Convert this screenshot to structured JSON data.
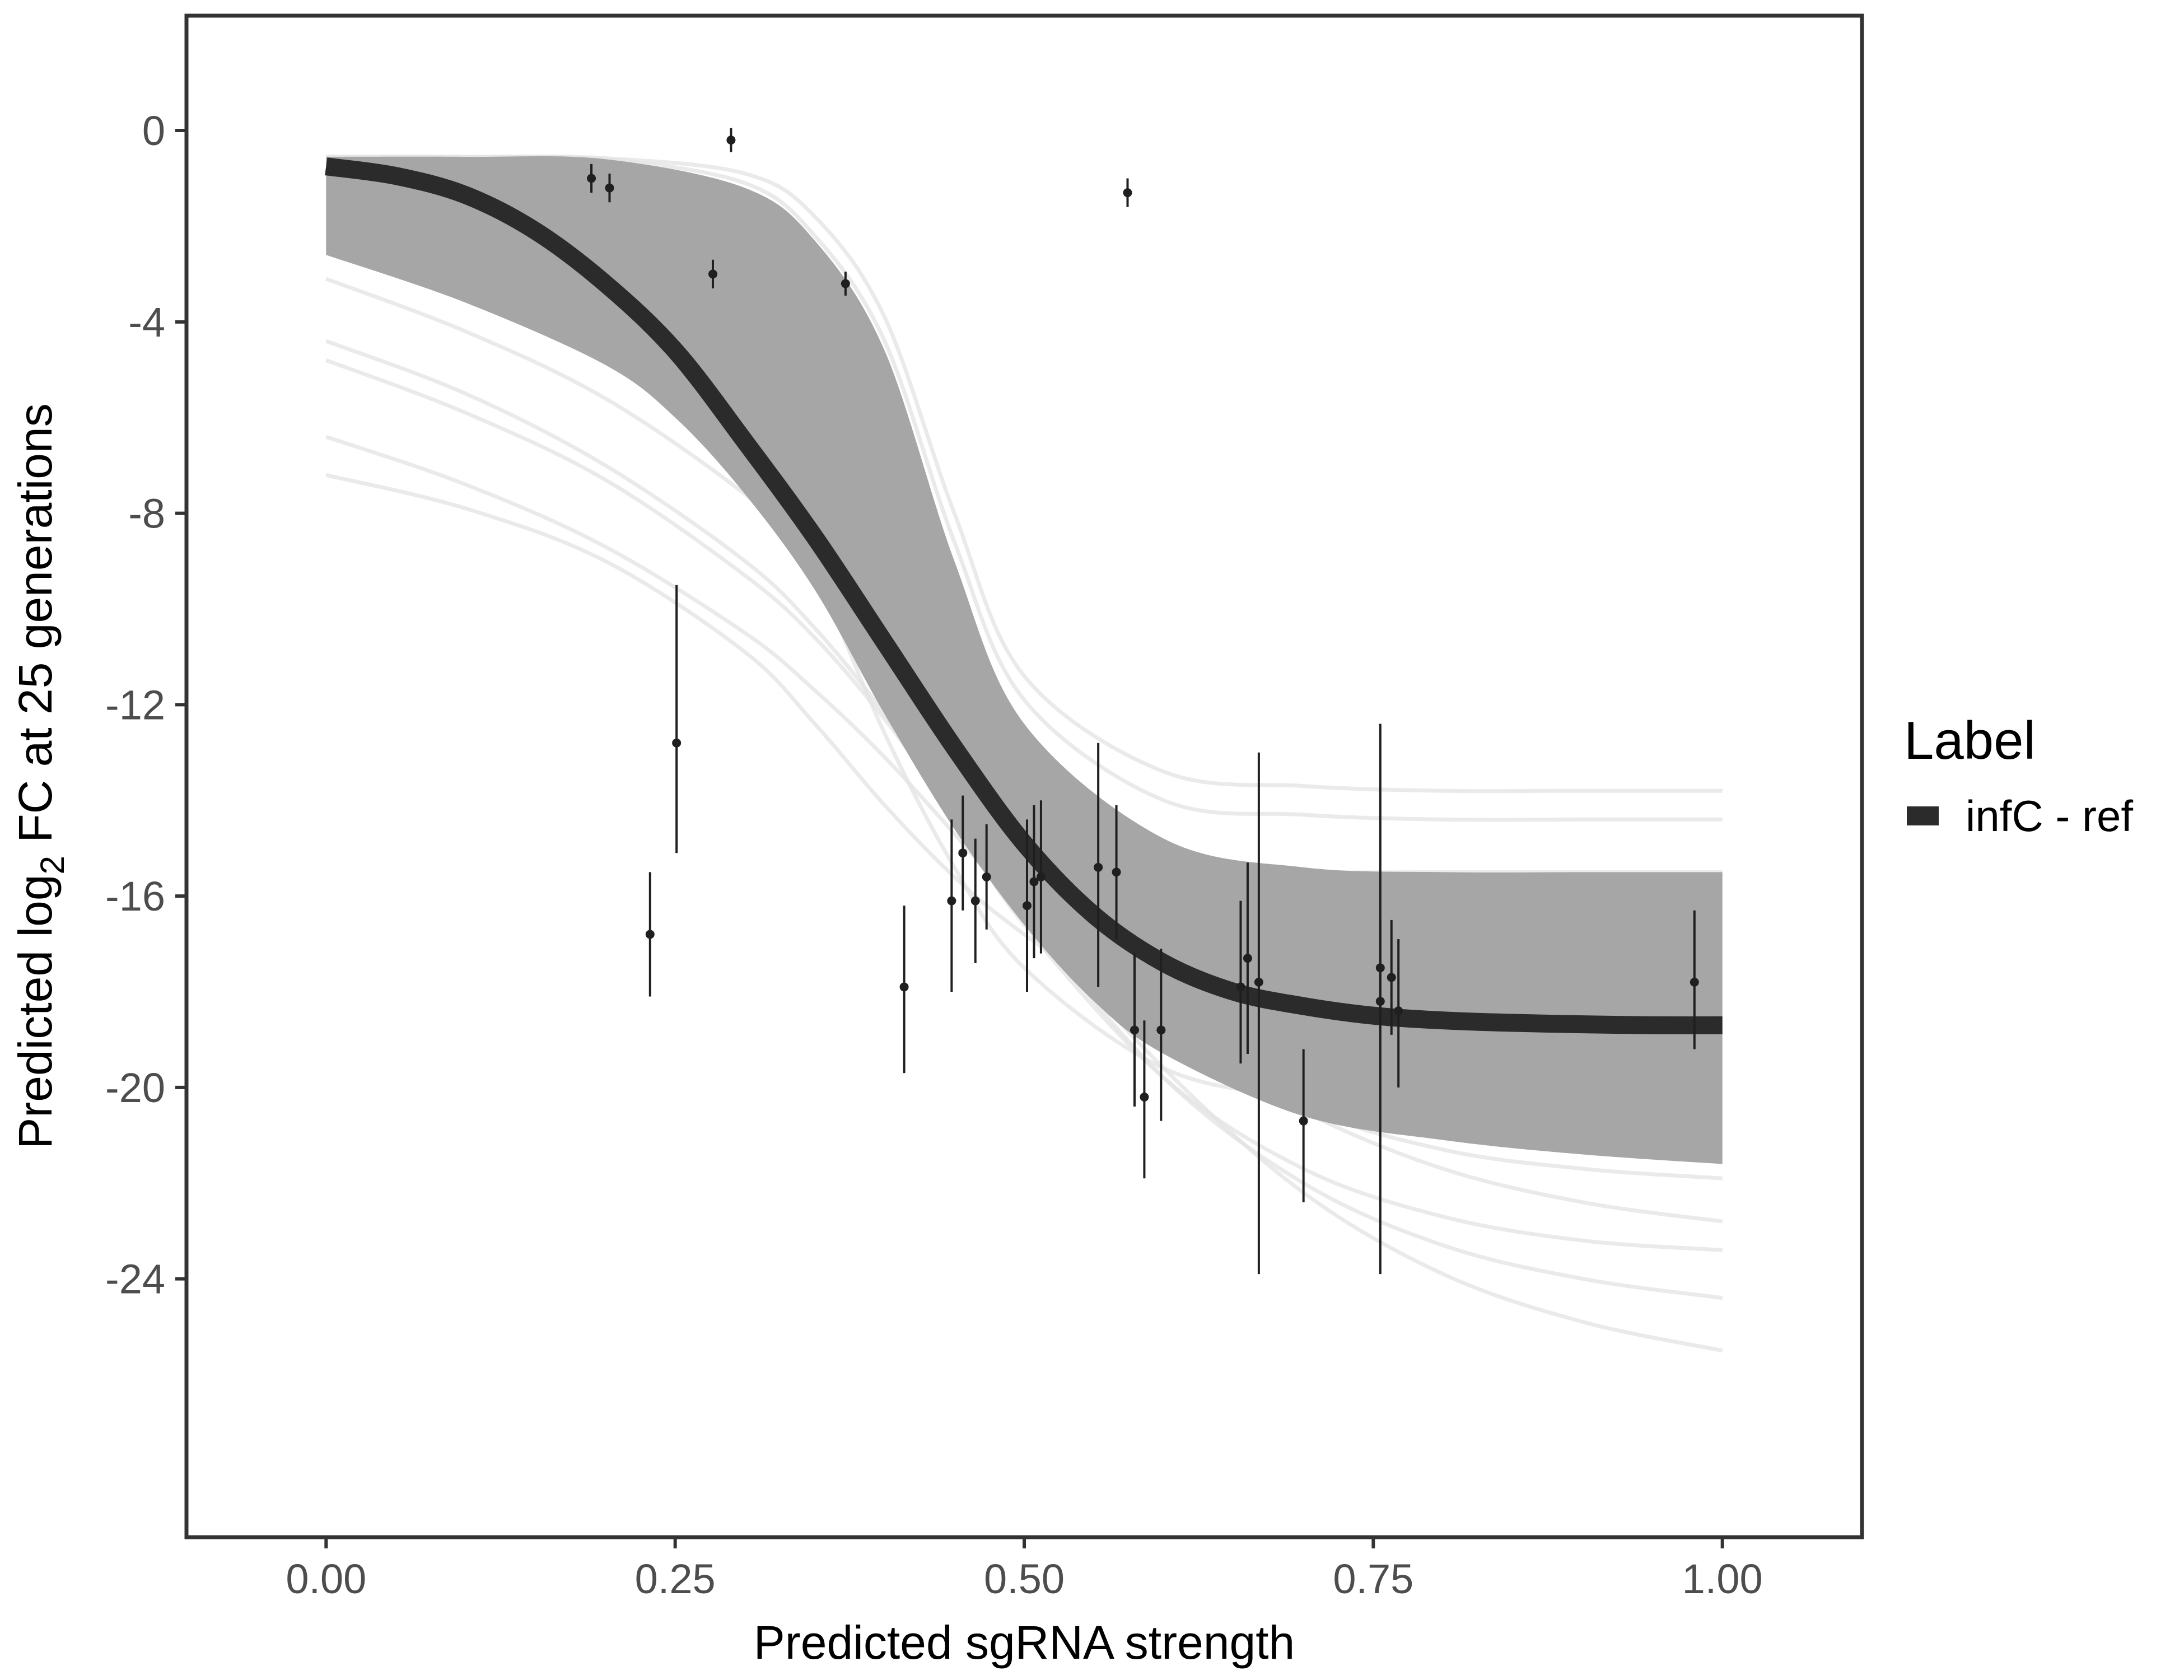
{
  "chart_data": {
    "type": "line",
    "xlabel": "Predicted sgRNA strength",
    "ylabel_parts": [
      "Predicted  log",
      "2",
      " FC at 25 generations"
    ],
    "xlim": [
      -0.1,
      1.1
    ],
    "ylim": [
      -29.4,
      2.4
    ],
    "x_ticks": [
      0,
      0.25,
      0.5,
      0.75,
      1
    ],
    "x_tick_labels": [
      "0.00",
      "0.25",
      "0.50",
      "0.75",
      "1.00"
    ],
    "y_ticks": [
      0,
      -4,
      -8,
      -12,
      -16,
      -20,
      -24
    ],
    "y_tick_labels": [
      "0",
      "-4",
      "-8",
      "-12",
      "-16",
      "-20",
      "-24"
    ],
    "grid": false,
    "legend": {
      "title": "Label",
      "position": "right",
      "items": [
        {
          "label": "infC - ref",
          "color": "#2b2b2b"
        }
      ]
    },
    "fit_curve": {
      "name": "infC - ref",
      "color": "#2b2b2b",
      "x": [
        0.0,
        0.05,
        0.1,
        0.15,
        0.2,
        0.25,
        0.3,
        0.35,
        0.4,
        0.45,
        0.5,
        0.55,
        0.6,
        0.65,
        0.7,
        0.75,
        0.8,
        0.85,
        0.9,
        0.95,
        1.0
      ],
      "y": [
        -0.75,
        -0.95,
        -1.35,
        -2.1,
        -3.2,
        -4.6,
        -6.5,
        -8.5,
        -10.7,
        -12.9,
        -14.9,
        -16.4,
        -17.4,
        -18.0,
        -18.3,
        -18.5,
        -18.6,
        -18.65,
        -18.68,
        -18.7,
        -18.7
      ]
    },
    "posterior_band": {
      "color": "#a6a6a6",
      "upper": {
        "x": [
          0.0,
          0.1,
          0.2,
          0.3,
          0.35,
          0.4,
          0.45,
          0.5,
          0.6,
          0.7,
          0.8,
          0.9,
          1.0
        ],
        "y": [
          -0.55,
          -0.55,
          -0.6,
          -1.2,
          -2.3,
          -4.6,
          -9.0,
          -12.4,
          -14.8,
          -15.4,
          -15.5,
          -15.5,
          -15.5
        ]
      },
      "lower": {
        "x": [
          0.0,
          0.1,
          0.2,
          0.25,
          0.3,
          0.35,
          0.4,
          0.45,
          0.5,
          0.55,
          0.6,
          0.7,
          0.8,
          0.9,
          1.0
        ],
        "y": [
          -2.6,
          -3.6,
          -4.9,
          -6.0,
          -7.6,
          -9.6,
          -12.2,
          -14.6,
          -16.6,
          -18.2,
          -19.3,
          -20.6,
          -21.1,
          -21.4,
          -21.6
        ]
      }
    },
    "draws_faint": {
      "color": "#e3e3e3",
      "x": [
        0.0,
        0.1,
        0.2,
        0.3,
        0.35,
        0.4,
        0.45,
        0.5,
        0.6,
        0.7,
        0.8,
        0.9,
        1.0
      ],
      "series": [
        [
          -0.55,
          -0.55,
          -0.58,
          -0.9,
          -1.8,
          -3.9,
          -8.0,
          -11.4,
          -13.4,
          -13.7,
          -13.8,
          -13.8,
          -13.8
        ],
        [
          -0.55,
          -0.55,
          -0.6,
          -1.1,
          -2.2,
          -4.4,
          -8.6,
          -11.9,
          -14.0,
          -14.3,
          -14.4,
          -14.4,
          -14.4
        ],
        [
          -0.6,
          -0.7,
          -1.2,
          -3.0,
          -5.4,
          -8.8,
          -12.2,
          -14.4,
          -15.4,
          -15.5,
          -15.5,
          -15.5,
          -15.5
        ],
        [
          -1.2,
          -1.8,
          -3.0,
          -5.1,
          -6.6,
          -8.7,
          -11.2,
          -13.6,
          -16.3,
          -17.1,
          -17.3,
          -17.3,
          -17.3
        ],
        [
          -3.1,
          -4.2,
          -5.6,
          -7.6,
          -9.0,
          -10.9,
          -13.2,
          -15.4,
          -18.6,
          -20.4,
          -21.3,
          -21.7,
          -21.9
        ],
        [
          -4.4,
          -5.5,
          -7.0,
          -9.0,
          -10.4,
          -12.2,
          -14.4,
          -16.6,
          -19.8,
          -21.7,
          -22.7,
          -23.2,
          -23.4
        ],
        [
          -4.8,
          -5.9,
          -7.3,
          -9.3,
          -10.6,
          -12.3,
          -14.3,
          -16.4,
          -19.8,
          -22.0,
          -23.3,
          -24.0,
          -24.4
        ],
        [
          -6.4,
          -7.4,
          -8.7,
          -10.5,
          -11.7,
          -13.1,
          -14.7,
          -16.4,
          -19.6,
          -22.2,
          -23.9,
          -24.9,
          -25.5
        ],
        [
          -7.2,
          -7.9,
          -9.0,
          -10.9,
          -12.4,
          -14.1,
          -15.6,
          -16.8,
          -18.8,
          -20.5,
          -21.7,
          -22.4,
          -22.8
        ],
        [
          -0.55,
          -0.6,
          -0.9,
          -2.3,
          -4.2,
          -7.6,
          -11.6,
          -14.3,
          -16.3,
          -16.8,
          -16.9,
          -16.9,
          -16.9
        ],
        [
          -0.6,
          -0.9,
          -1.8,
          -4.3,
          -7.1,
          -10.9,
          -14.2,
          -16.0,
          -17.1,
          -17.3,
          -17.3,
          -17.3,
          -17.3
        ],
        [
          -0.7,
          -1.2,
          -2.8,
          -6.4,
          -9.2,
          -12.6,
          -15.4,
          -17.5,
          -19.6,
          -20.2,
          -20.4,
          -20.4,
          -20.4
        ],
        [
          -2.0,
          -2.6,
          -3.6,
          -5.4,
          -6.9,
          -8.9,
          -11.5,
          -14.2,
          -18.0,
          -19.6,
          -20.1,
          -20.2,
          -20.2
        ]
      ]
    },
    "points": [
      {
        "x": 0.19,
        "y": -1.0,
        "lo": -1.3,
        "hi": -0.7
      },
      {
        "x": 0.203,
        "y": -1.2,
        "lo": -1.5,
        "hi": -0.9
      },
      {
        "x": 0.232,
        "y": -16.8,
        "lo": -18.1,
        "hi": -15.5
      },
      {
        "x": 0.251,
        "y": -12.8,
        "lo": -15.1,
        "hi": -9.5
      },
      {
        "x": 0.277,
        "y": -3.0,
        "lo": -3.3,
        "hi": -2.7
      },
      {
        "x": 0.29,
        "y": -0.2,
        "lo": -0.45,
        "hi": 0.05
      },
      {
        "x": 0.372,
        "y": -3.2,
        "lo": -3.45,
        "hi": -2.95
      },
      {
        "x": 0.414,
        "y": -17.9,
        "lo": -19.7,
        "hi": -16.2
      },
      {
        "x": 0.448,
        "y": -16.1,
        "lo": -18.0,
        "hi": -14.4
      },
      {
        "x": 0.456,
        "y": -15.1,
        "lo": -16.3,
        "hi": -13.9
      },
      {
        "x": 0.465,
        "y": -16.1,
        "lo": -17.4,
        "hi": -14.8
      },
      {
        "x": 0.473,
        "y": -15.6,
        "lo": -16.7,
        "hi": -14.5
      },
      {
        "x": 0.502,
        "y": -16.2,
        "lo": -18.0,
        "hi": -14.4
      },
      {
        "x": 0.507,
        "y": -15.7,
        "lo": -17.3,
        "hi": -14.1
      },
      {
        "x": 0.512,
        "y": -15.6,
        "lo": -17.2,
        "hi": -14.0
      },
      {
        "x": 0.553,
        "y": -15.4,
        "lo": -17.9,
        "hi": -12.8
      },
      {
        "x": 0.566,
        "y": -15.5,
        "lo": -16.9,
        "hi": -14.1
      },
      {
        "x": 0.574,
        "y": -1.3,
        "lo": -1.6,
        "hi": -1.0
      },
      {
        "x": 0.579,
        "y": -18.8,
        "lo": -20.4,
        "hi": -17.2
      },
      {
        "x": 0.586,
        "y": -20.2,
        "lo": -21.9,
        "hi": -18.6
      },
      {
        "x": 0.598,
        "y": -18.8,
        "lo": -20.7,
        "hi": -17.1
      },
      {
        "x": 0.655,
        "y": -17.9,
        "lo": -19.5,
        "hi": -16.1
      },
      {
        "x": 0.66,
        "y": -17.3,
        "lo": -19.3,
        "hi": -15.3
      },
      {
        "x": 0.668,
        "y": -17.8,
        "lo": -23.9,
        "hi": -13.0
      },
      {
        "x": 0.7,
        "y": -20.7,
        "lo": -22.4,
        "hi": -19.2
      },
      {
        "x": 0.755,
        "y": -17.5,
        "lo": -18.5,
        "hi": -16.5
      },
      {
        "x": 0.755,
        "y": -18.2,
        "lo": -23.9,
        "hi": -12.4
      },
      {
        "x": 0.763,
        "y": -17.7,
        "lo": -18.9,
        "hi": -16.5
      },
      {
        "x": 0.768,
        "y": -18.4,
        "lo": -20.0,
        "hi": -16.9
      },
      {
        "x": 0.98,
        "y": -17.8,
        "lo": -19.2,
        "hi": -16.3
      }
    ]
  }
}
